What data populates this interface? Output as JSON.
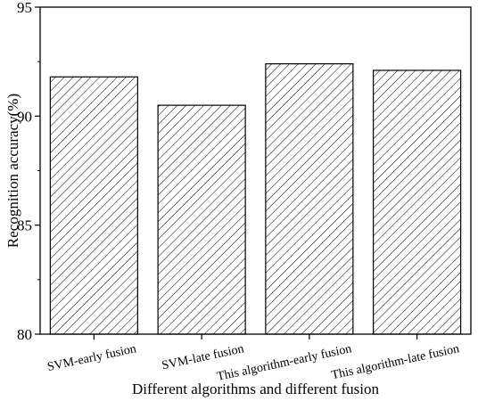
{
  "chart_data": {
    "type": "bar",
    "categories": [
      "SVM-early fusion",
      "SVM-late fusion",
      "This algorithm-early fusion",
      "This algorithm-late fusion"
    ],
    "values": [
      91.8,
      90.5,
      92.4,
      92.1
    ],
    "xlabel": "Different algorithms and different fusion",
    "ylabel": "Recognition accuracy(%)",
    "ylim": [
      80,
      95
    ],
    "yticks": [
      80,
      85,
      90,
      95
    ],
    "bar_fill": "hatched",
    "colors": {
      "bar_stroke": "#000000",
      "hatch": "#000000",
      "background": "#ffffff"
    },
    "grid": false,
    "legend": "none"
  }
}
